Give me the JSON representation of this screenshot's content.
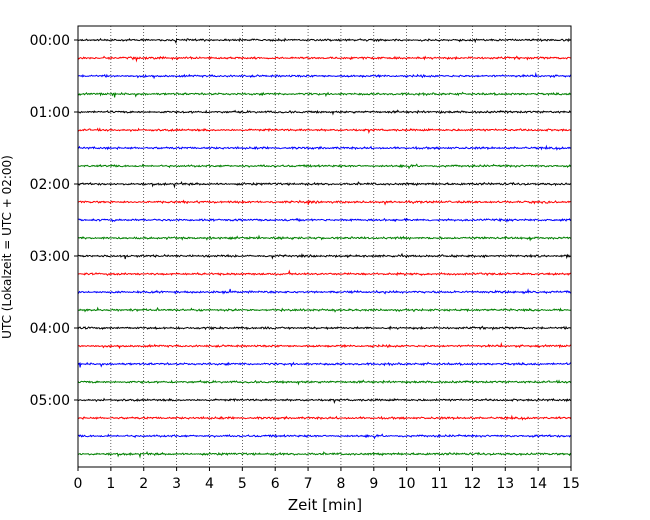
{
  "chart_data": {
    "type": "line",
    "subtype": "helicorder",
    "title": "",
    "xlabel": "Zeit  [min]",
    "ylabel": "UTC (Lokalzeit = UTC + 02:00)",
    "xlim": [
      0,
      15
    ],
    "x_ticks": [
      "0",
      "1",
      "2",
      "3",
      "4",
      "5",
      "6",
      "7",
      "8",
      "9",
      "10",
      "11",
      "12",
      "13",
      "14",
      "15"
    ],
    "y_ticks": [
      "00:00",
      "01:00",
      "02:00",
      "03:00",
      "04:00",
      "05:00"
    ],
    "grid": "vertical dotted lines at each minute",
    "trace_interval_min": 15,
    "trace_colors": [
      "#000000",
      "#ff0000",
      "#0000ff",
      "#008000"
    ],
    "trace_count": 24,
    "trace_start_times": [
      "00:00",
      "00:15",
      "00:30",
      "00:45",
      "01:00",
      "01:15",
      "01:30",
      "01:45",
      "02:00",
      "02:15",
      "02:30",
      "02:45",
      "03:00",
      "03:15",
      "03:30",
      "03:45",
      "04:00",
      "04:15",
      "04:30",
      "04:45",
      "05:00",
      "05:15",
      "05:30",
      "05:45"
    ]
  }
}
